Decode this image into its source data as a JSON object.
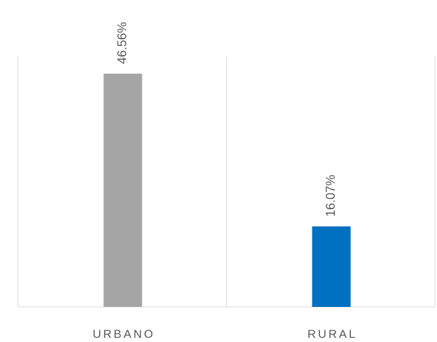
{
  "chart_data": {
    "type": "bar",
    "categories": [
      "URBANO",
      "RURAL"
    ],
    "values": [
      46.56,
      16.07
    ],
    "value_labels": [
      "46.56%",
      "16.07%"
    ],
    "colors": [
      "#a5a5a5",
      "#0070c0"
    ]
  }
}
